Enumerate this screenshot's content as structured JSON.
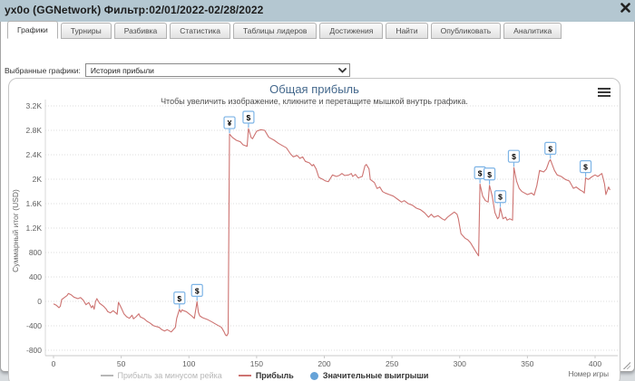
{
  "window": {
    "title": "yx0o (GGNetwork) Фильтр:02/01/2022-02/28/2022"
  },
  "icons": {
    "close": "x-cross",
    "chart_menu": "hamburger",
    "select_chevron": "chevron-down",
    "resize": "diagonal-grip"
  },
  "tabs": [
    {
      "label": "Графики",
      "active": true
    },
    {
      "label": "Турниры",
      "active": false
    },
    {
      "label": "Разбивка",
      "active": false
    },
    {
      "label": "Статистика",
      "active": false
    },
    {
      "label": "Таблицы лидеров",
      "active": false
    },
    {
      "label": "Достижения",
      "active": false
    },
    {
      "label": "Найти",
      "active": false
    },
    {
      "label": "Опубликовать",
      "active": false
    },
    {
      "label": "Аналитика",
      "active": false
    }
  ],
  "graph_selector": {
    "label": "Выбранные графики:",
    "value": "История прибыли"
  },
  "colors": {
    "titlebar_bg": "#b4c7d1",
    "chart_title": "#44688c",
    "profit_line": "#cd7371",
    "disabled_series": "#b7b7b7",
    "marker_border": "#7db4e6",
    "win_dot": "#66a3d8",
    "gridline": "#dcdcdc",
    "tick_text": "#606060"
  },
  "chart_data": {
    "type": "line",
    "title": "Общая прибыль",
    "subtitle": "Чтобы увеличить изображение, кликните и перетащите мышкой внутрь графика.",
    "xlabel": "Номер игры",
    "ylabel": "Суммарный итог (USD)",
    "xlim": [
      0,
      412
    ],
    "ylim": [
      -889,
      3304
    ],
    "x_ticks": [
      0,
      50,
      100,
      150,
      200,
      250,
      300,
      350,
      400
    ],
    "y_ticks": [
      {
        "value": 3200,
        "label": "3.2K"
      },
      {
        "value": 2800,
        "label": "2.8K"
      },
      {
        "value": 2400,
        "label": "2.4K"
      },
      {
        "value": 2000,
        "label": "2K"
      },
      {
        "value": 1600,
        "label": "1.6K"
      },
      {
        "value": 1200,
        "label": "1.2K"
      },
      {
        "value": 800,
        "label": "800"
      },
      {
        "value": 400,
        "label": "400"
      },
      {
        "value": 0,
        "label": "0"
      },
      {
        "value": -400,
        "label": "-400"
      },
      {
        "value": -800,
        "label": "-800"
      }
    ],
    "grid": "horizontal-dotted",
    "legend_position": "bottom",
    "legend": [
      {
        "label": "Прибыль за минусом рейка",
        "color": "#b7b7b7",
        "type": "line",
        "disabled": true
      },
      {
        "label": "Прибыль",
        "color": "#cd7371",
        "type": "line",
        "disabled": false
      },
      {
        "label": "Значительные выигрыши",
        "color": "#66a3d8",
        "type": "marker",
        "disabled": false
      }
    ],
    "series": [
      {
        "name": "Прибыль",
        "color": "#cd7371",
        "points": [
          [
            0,
            -40
          ],
          [
            2,
            -62
          ],
          [
            4,
            -104
          ],
          [
            5,
            -80
          ],
          [
            6,
            30
          ],
          [
            8,
            62
          ],
          [
            10,
            95
          ],
          [
            11,
            129
          ],
          [
            13,
            108
          ],
          [
            15,
            70
          ],
          [
            18,
            45
          ],
          [
            20,
            62
          ],
          [
            22,
            19
          ],
          [
            24,
            -55
          ],
          [
            26,
            -20
          ],
          [
            28,
            -104
          ],
          [
            29,
            -70
          ],
          [
            30,
            -129
          ],
          [
            31,
            -5
          ],
          [
            32,
            45
          ],
          [
            34,
            -30
          ],
          [
            37,
            -80
          ],
          [
            39,
            -129
          ],
          [
            40,
            -167
          ],
          [
            42,
            -188
          ],
          [
            44,
            -153
          ],
          [
            46,
            -190
          ],
          [
            47,
            -212
          ],
          [
            48,
            -15
          ],
          [
            50,
            -104
          ],
          [
            52,
            -203
          ],
          [
            54,
            -252
          ],
          [
            56,
            -277
          ],
          [
            58,
            -227
          ],
          [
            59,
            -286
          ],
          [
            61,
            -252
          ],
          [
            63,
            -203
          ],
          [
            64,
            -252
          ],
          [
            67,
            -286
          ],
          [
            69,
            -326
          ],
          [
            71,
            -351
          ],
          [
            74,
            -400
          ],
          [
            78,
            -425
          ],
          [
            80,
            -464
          ],
          [
            82,
            -484
          ],
          [
            84,
            -464
          ],
          [
            87,
            -500
          ],
          [
            89,
            -450
          ],
          [
            90,
            -425
          ],
          [
            91,
            -277
          ],
          [
            93,
            -130
          ],
          [
            94,
            -178
          ],
          [
            95,
            -138
          ],
          [
            96,
            -153
          ],
          [
            98,
            -168
          ],
          [
            100,
            -203
          ],
          [
            102,
            -237
          ],
          [
            104,
            -280
          ],
          [
            106,
            -5
          ],
          [
            107,
            -178
          ],
          [
            108,
            -237
          ],
          [
            110,
            -267
          ],
          [
            114,
            -301
          ],
          [
            117,
            -336
          ],
          [
            120,
            -375
          ],
          [
            124,
            -425
          ],
          [
            126,
            -500
          ],
          [
            127,
            -548
          ],
          [
            128,
            -563
          ],
          [
            129,
            -523
          ],
          [
            130,
            2740
          ],
          [
            132,
            2686
          ],
          [
            135,
            2637
          ],
          [
            138,
            2612
          ],
          [
            140,
            2563
          ],
          [
            143,
            2538
          ],
          [
            144,
            2830
          ],
          [
            146,
            2680
          ],
          [
            147,
            2662
          ],
          [
            150,
            2785
          ],
          [
            153,
            2810
          ],
          [
            156,
            2800
          ],
          [
            159,
            2686
          ],
          [
            163,
            2637
          ],
          [
            166,
            2588
          ],
          [
            170,
            2538
          ],
          [
            172,
            2514
          ],
          [
            175,
            2415
          ],
          [
            177,
            2366
          ],
          [
            180,
            2390
          ],
          [
            182,
            2341
          ],
          [
            184,
            2366
          ],
          [
            186,
            2292
          ],
          [
            189,
            2267
          ],
          [
            191,
            2218
          ],
          [
            192,
            2242
          ],
          [
            194,
            2168
          ],
          [
            196,
            2030
          ],
          [
            199,
            1995
          ],
          [
            201,
            1970
          ],
          [
            203,
            1960
          ],
          [
            204,
            1995
          ],
          [
            206,
            2069
          ],
          [
            209,
            2045
          ],
          [
            211,
            2060
          ],
          [
            213,
            2094
          ],
          [
            215,
            2060
          ],
          [
            218,
            2069
          ],
          [
            220,
            2094
          ],
          [
            221,
            2045
          ],
          [
            223,
            2079
          ],
          [
            225,
            2020
          ],
          [
            228,
            2045
          ],
          [
            230,
            2218
          ],
          [
            231,
            2242
          ],
          [
            233,
            2168
          ],
          [
            234,
            1995
          ],
          [
            237,
            1945
          ],
          [
            239,
            1847
          ],
          [
            241,
            1872
          ],
          [
            243,
            1797
          ],
          [
            245,
            1773
          ],
          [
            248,
            1748
          ],
          [
            251,
            1723
          ],
          [
            254,
            1674
          ],
          [
            257,
            1625
          ],
          [
            259,
            1649
          ],
          [
            262,
            1600
          ],
          [
            265,
            1575
          ],
          [
            268,
            1526
          ],
          [
            271,
            1501
          ],
          [
            274,
            1452
          ],
          [
            277,
            1378
          ],
          [
            279,
            1427
          ],
          [
            281,
            1378
          ],
          [
            284,
            1403
          ],
          [
            287,
            1353
          ],
          [
            289,
            1329
          ],
          [
            291,
            1378
          ],
          [
            293,
            1412
          ],
          [
            296,
            1462
          ],
          [
            298,
            1427
          ],
          [
            299,
            1353
          ],
          [
            301,
            1107
          ],
          [
            304,
            1032
          ],
          [
            306,
            1007
          ],
          [
            308,
            958
          ],
          [
            310,
            884
          ],
          [
            312,
            810
          ],
          [
            314,
            745
          ],
          [
            315,
            1920
          ],
          [
            317,
            1723
          ],
          [
            319,
            1649
          ],
          [
            321,
            1625
          ],
          [
            322,
            1900
          ],
          [
            324,
            1723
          ],
          [
            326,
            1452
          ],
          [
            328,
            1353
          ],
          [
            329,
            1378
          ],
          [
            330,
            1530
          ],
          [
            332,
            1353
          ],
          [
            334,
            1378
          ],
          [
            335,
            1329
          ],
          [
            337,
            1353
          ],
          [
            339,
            1329
          ],
          [
            340,
            2190
          ],
          [
            342,
            1970
          ],
          [
            344,
            1847
          ],
          [
            346,
            1797
          ],
          [
            350,
            1748
          ],
          [
            353,
            1773
          ],
          [
            355,
            1738
          ],
          [
            357,
            1896
          ],
          [
            359,
            2143
          ],
          [
            362,
            2119
          ],
          [
            364,
            2168
          ],
          [
            366,
            2292
          ],
          [
            367,
            2320
          ],
          [
            370,
            2143
          ],
          [
            372,
            2069
          ],
          [
            375,
            2045
          ],
          [
            378,
            1995
          ],
          [
            381,
            1970
          ],
          [
            384,
            1850
          ],
          [
            386,
            1872
          ],
          [
            389,
            1822
          ],
          [
            391,
            1797
          ],
          [
            392,
            1773
          ],
          [
            393,
            2020
          ],
          [
            395,
            1995
          ],
          [
            398,
            2045
          ],
          [
            400,
            2069
          ],
          [
            402,
            2045
          ],
          [
            405,
            2094
          ],
          [
            407,
            1921
          ],
          [
            408,
            1748
          ],
          [
            410,
            1872
          ],
          [
            411,
            1822
          ]
        ]
      }
    ],
    "markers": [
      {
        "x": 93,
        "y": -130,
        "symbol": "$"
      },
      {
        "x": 106,
        "y": -5,
        "symbol": "$"
      },
      {
        "x": 130,
        "y": 2740,
        "symbol": "¥"
      },
      {
        "x": 144,
        "y": 2830,
        "symbol": "$"
      },
      {
        "x": 315,
        "y": 1920,
        "symbol": "$"
      },
      {
        "x": 322,
        "y": 1900,
        "symbol": "$"
      },
      {
        "x": 330,
        "y": 1530,
        "symbol": "$"
      },
      {
        "x": 340,
        "y": 2190,
        "symbol": "$"
      },
      {
        "x": 367,
        "y": 2320,
        "symbol": "$"
      },
      {
        "x": 393,
        "y": 2020,
        "symbol": "$"
      }
    ],
    "marker_style": {
      "background": "#ffffff",
      "border": "#7db4e6",
      "text_color": "#000000"
    }
  }
}
